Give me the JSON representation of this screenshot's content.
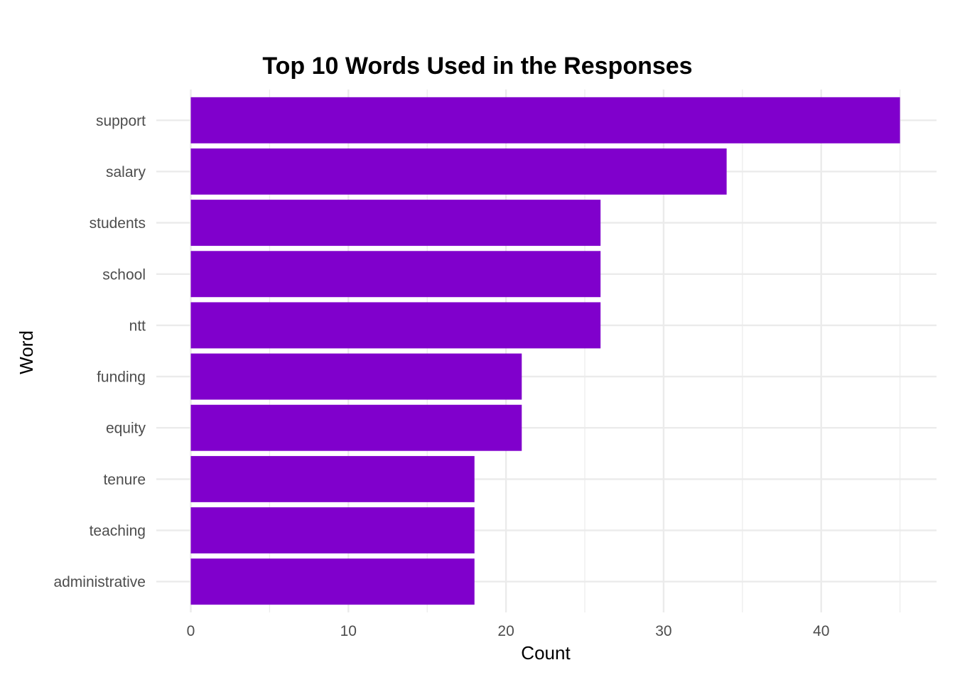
{
  "chart_data": {
    "type": "bar",
    "orientation": "horizontal",
    "title": "Top 10 Words Used in the Responses",
    "xlabel": "Count",
    "ylabel": "Word",
    "categories": [
      "support",
      "salary",
      "students",
      "school",
      "ntt",
      "funding",
      "equity",
      "tenure",
      "teaching",
      "administrative"
    ],
    "values": [
      45,
      34,
      26,
      26,
      26,
      21,
      21,
      18,
      18,
      18
    ],
    "xlim": [
      0,
      47.25
    ],
    "xticks": [
      0,
      10,
      20,
      30,
      40
    ],
    "grid": true,
    "legend": "none",
    "bar_color": "#8000cc",
    "grid_color": "#ebebeb"
  }
}
